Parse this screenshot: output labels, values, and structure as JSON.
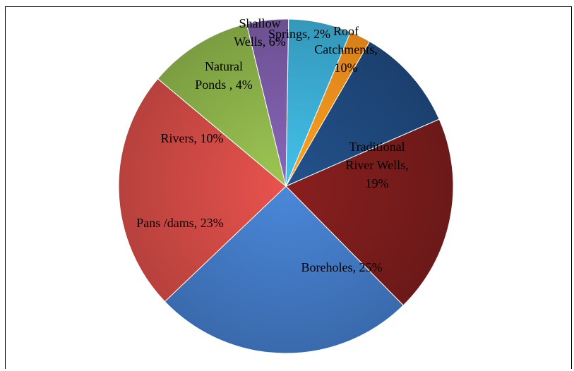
{
  "chart_data": {
    "type": "pie",
    "title": "",
    "legend": "none",
    "start_angle_deg": 30,
    "direction": "clockwise",
    "slices": [
      {
        "name": "Roof Catchments",
        "value": 10,
        "color": "#1F497D",
        "label_lines": [
          "Roof",
          "Catchments,",
          "10%"
        ]
      },
      {
        "name": "Traditional River Wells",
        "value": 19,
        "color": "#7B1C1C",
        "label_lines": [
          "Traditional",
          "River Wells,",
          "19%"
        ]
      },
      {
        "name": "Boreholes",
        "value": 25,
        "color": "#4279C3",
        "label_lines": [
          "Boreholes, 25%"
        ]
      },
      {
        "name": "Pans /dams",
        "value": 23,
        "color": "#D04A45",
        "label_lines": [
          "Pans /dams, 23%"
        ]
      },
      {
        "name": "Rivers",
        "value": 10,
        "color": "#8CB24A",
        "label_lines": [
          "Rivers, 10%"
        ]
      },
      {
        "name": "Natural Ponds",
        "value": 4,
        "color": "#7A5BA5",
        "label_lines": [
          "Natural",
          "Ponds , 4%"
        ]
      },
      {
        "name": "Shallow Wells",
        "value": 6,
        "color": "#3CADD3",
        "label_lines": [
          "Shallow",
          "Wells, 6%"
        ]
      },
      {
        "name": "Springs",
        "value": 2,
        "color": "#F4921E",
        "label_lines": [
          "Springs, 2%"
        ]
      }
    ]
  }
}
